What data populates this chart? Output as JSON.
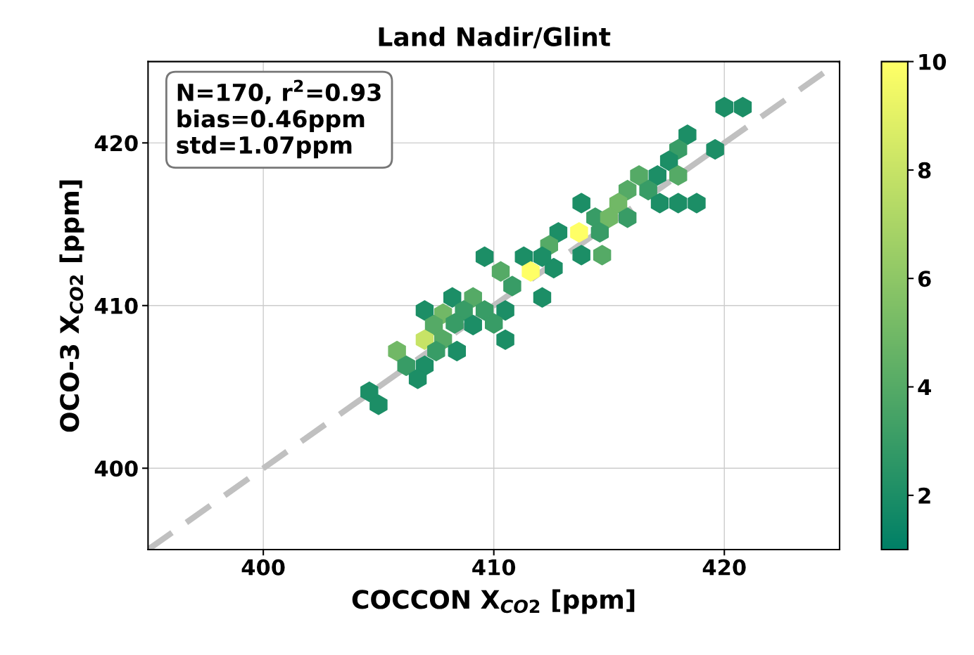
{
  "chart_data": {
    "type": "scatter",
    "title": "Land Nadir/Glint",
    "xlabel": "COCCON X$_{CO2}$ [ppm]",
    "ylabel": "OCO-3 X$_{CO2}$ [ppm]",
    "annotations": [
      "N=170, r$^{2}$=0.93\nbias=0.46ppm\nstd=1.07ppm"
    ],
    "xlim": [
      395,
      425
    ],
    "ylim": [
      395,
      425
    ],
    "xticks": [
      400,
      410,
      420
    ],
    "yticks": [
      400,
      410,
      420
    ],
    "grid": true,
    "clim": [
      1,
      10
    ],
    "cticks": [
      2,
      4,
      6,
      8,
      10
    ],
    "series": [
      {
        "type": "line",
        "color": "#c0c0c0",
        "line_style": "dashed",
        "x": [
          395,
          425
        ],
        "values": [
          395,
          425
        ]
      },
      {
        "x": [
          420.0,
          420.8,
          418.4,
          418.0,
          419.6,
          417.6,
          418.0,
          416.3,
          417.1,
          415.8,
          416.7,
          417.2,
          418.0,
          418.8,
          415.4,
          413.8,
          414.4,
          415.0,
          415.8,
          413.7,
          412.8,
          414.6,
          412.4,
          413.8,
          414.7,
          412.6,
          409.6,
          411.3,
          412.1,
          410.3,
          411.6,
          410.8,
          412.1,
          408.2,
          409.1,
          407.0,
          407.8,
          408.7,
          409.6,
          410.5,
          407.4,
          408.3,
          409.1,
          410.0,
          407.0,
          407.8,
          410.5,
          408.4,
          407.5,
          405.8,
          406.2,
          407.0,
          406.7,
          404.6,
          405.0
        ],
        "values": [
          422.2,
          422.2,
          420.5,
          419.6,
          419.6,
          418.9,
          418.0,
          418.0,
          418.0,
          417.1,
          417.1,
          416.3,
          416.3,
          416.3,
          416.3,
          416.3,
          415.4,
          415.4,
          415.4,
          414.5,
          414.5,
          414.5,
          413.7,
          413.1,
          413.1,
          412.3,
          413.0,
          413.0,
          413.0,
          412.1,
          412.1,
          411.2,
          410.5,
          410.5,
          410.5,
          409.7,
          409.5,
          409.7,
          409.7,
          409.7,
          408.8,
          408.9,
          408.8,
          408.9,
          407.9,
          407.9,
          407.9,
          407.2,
          407.2,
          407.2,
          406.3,
          406.3,
          405.5,
          404.7,
          403.9
        ],
        "cvalues": [
          2,
          2,
          2,
          3,
          2,
          2,
          4,
          4,
          2,
          4,
          3,
          2,
          2,
          2,
          5,
          2,
          3,
          5,
          3,
          10,
          2,
          3,
          4,
          2,
          4,
          2,
          2,
          2,
          2,
          4,
          10,
          3,
          2,
          2,
          4,
          2,
          5,
          3,
          3,
          2,
          4,
          3,
          2,
          3,
          8,
          4,
          2,
          2,
          3,
          5,
          3,
          2,
          2,
          2,
          2
        ],
        "colors": [
          "#1c8e66",
          "#1c8e66",
          "#1c8e66",
          "#399c66",
          "#1c8e66",
          "#1c8e66",
          "#55aa66",
          "#55aa66",
          "#1c8e66",
          "#55aa66",
          "#399c66",
          "#1c8e66",
          "#1c8e66",
          "#1c8e66",
          "#71b866",
          "#1c8e66",
          "#399c66",
          "#71b866",
          "#399c66",
          "#ffff66",
          "#1c8e66",
          "#399c66",
          "#55aa66",
          "#1c8e66",
          "#55aa66",
          "#1c8e66",
          "#1c8e66",
          "#1c8e66",
          "#1c8e66",
          "#55aa66",
          "#ffff66",
          "#399c66",
          "#1c8e66",
          "#1c8e66",
          "#55aa66",
          "#1c8e66",
          "#71b866",
          "#399c66",
          "#399c66",
          "#1c8e66",
          "#55aa66",
          "#399c66",
          "#1c8e66",
          "#399c66",
          "#c6e366",
          "#55aa66",
          "#1c8e66",
          "#1c8e66",
          "#399c66",
          "#71b866",
          "#399c66",
          "#1c8e66",
          "#1c8e66",
          "#1c8e66",
          "#1c8e66"
        ]
      }
    ]
  }
}
